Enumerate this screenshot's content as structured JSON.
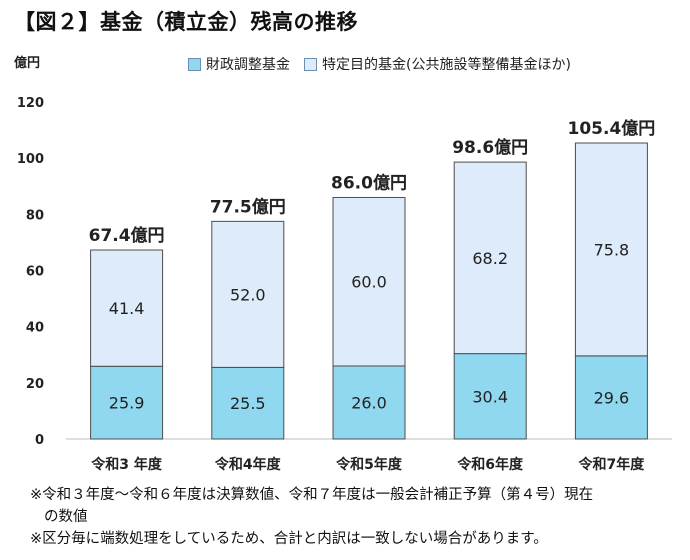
{
  "title": "【図２】基金（積立金）残高の推移",
  "unit_label": "億円",
  "legend": [
    {
      "label": "財政調整基金",
      "color": "#8fd8f0"
    },
    {
      "label": "特定目的基金(公共施設等整備基金ほか)",
      "color": "#ddebfa"
    }
  ],
  "chart_data": {
    "type": "bar",
    "stacked": true,
    "categories": [
      "令和3 年度",
      "令和4年度",
      "令和5年度",
      "令和6年度",
      "令和7年度"
    ],
    "series": [
      {
        "name": "財政調整基金",
        "values": [
          25.9,
          25.5,
          26.0,
          30.4,
          29.6
        ],
        "color": "#8fd8f0"
      },
      {
        "name": "特定目的基金(公共施設等整備基金ほか)",
        "values": [
          41.4,
          52.0,
          60.0,
          68.2,
          75.8
        ],
        "color": "#ddebfa"
      }
    ],
    "totals": [
      "67.4億円",
      "77.5億円",
      "86.0億円",
      "98.6億円",
      "105.4億円"
    ],
    "ylim": [
      0,
      120
    ],
    "yticks": [
      0,
      20,
      40,
      60,
      80,
      100,
      120
    ],
    "grid": false
  },
  "notes": [
    "※令和３年度〜令和６年度は決算数値、令和７年度は一般会計補正予算（第４号）現在",
    "の数値",
    "※区分毎に端数処理をしているため、合計と内訳は一致しない場合があります。"
  ]
}
